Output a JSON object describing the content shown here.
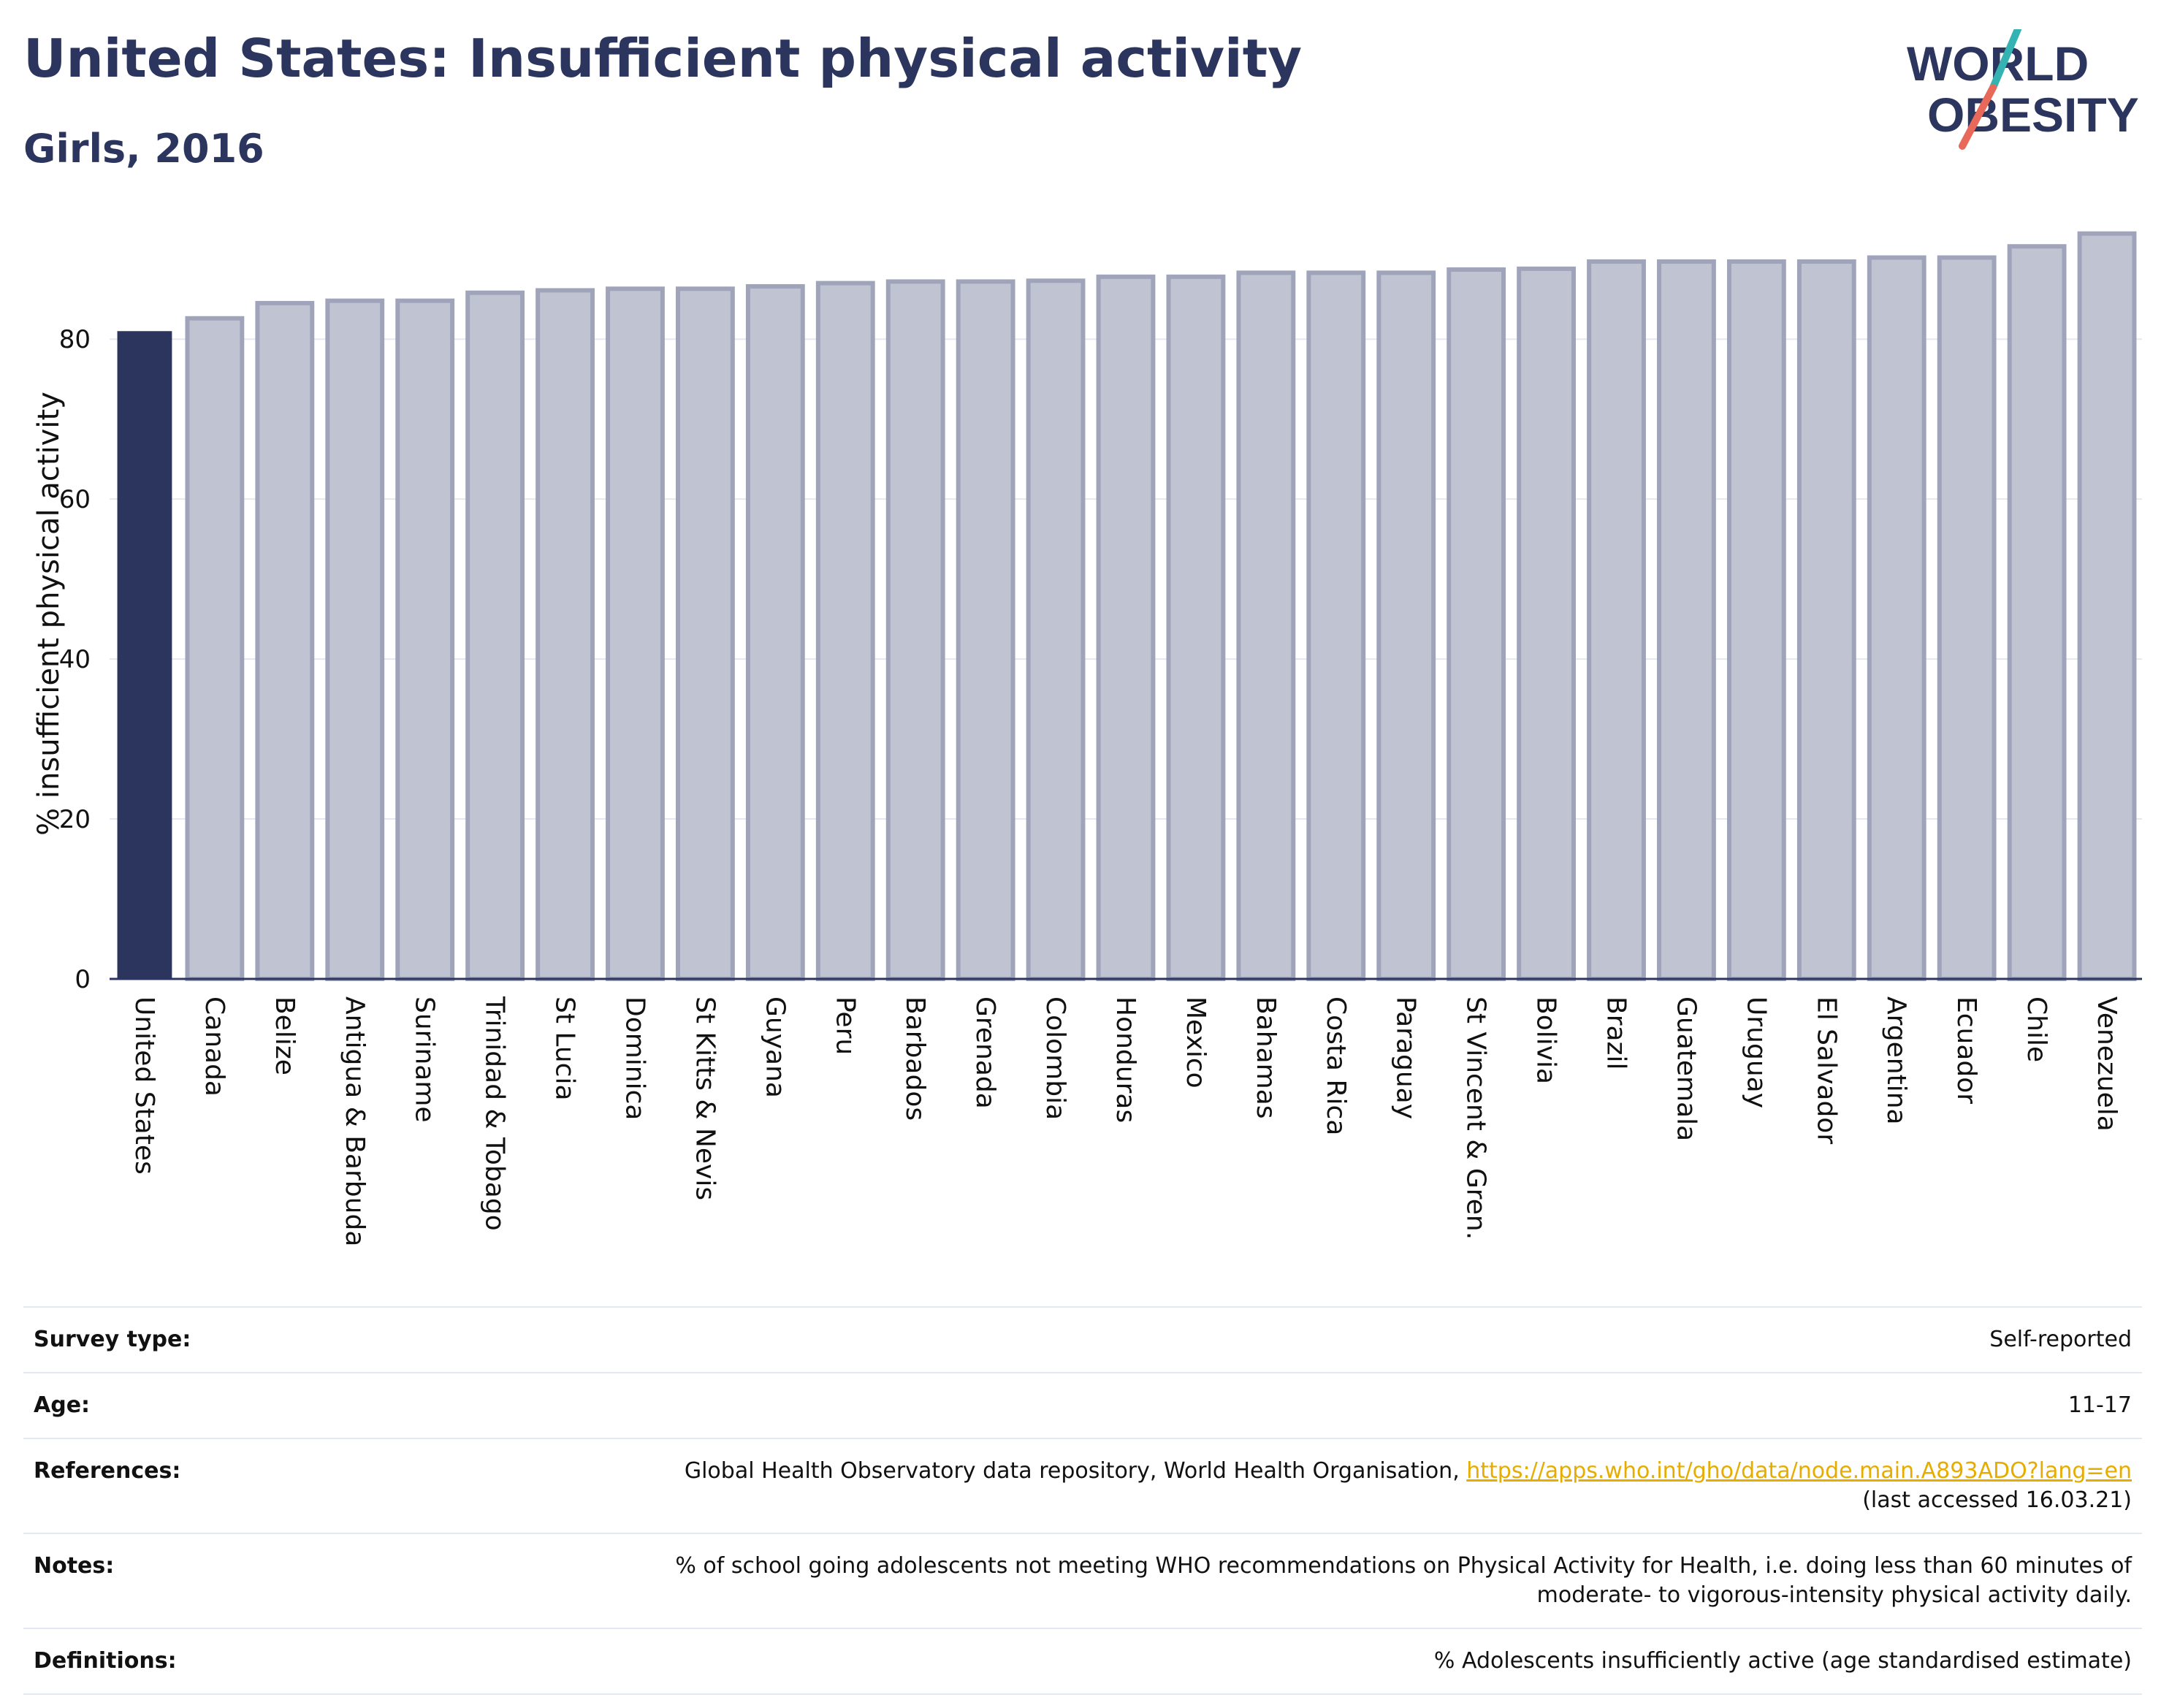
{
  "header": {
    "title": "United States: Insufficient physical activity",
    "subtitle": "Girls, 2016"
  },
  "logo": {
    "line1": "WORLD",
    "line2": "OBESITY",
    "colors": {
      "text": "#2b355e",
      "slash_top": "#35b3b3",
      "slash_bottom": "#e8685a"
    }
  },
  "chart_data": {
    "type": "bar",
    "ylabel": "% insufficient physical activity",
    "xlabel": "",
    "ylim": [
      0,
      95
    ],
    "yticks": [
      0,
      20,
      40,
      60,
      80
    ],
    "grid": true,
    "highlight": "United States",
    "colors": {
      "highlight": "#2b355e",
      "bar_fill": "#c0c3d1",
      "bar_stroke": "#9fa4ba",
      "grid": "#e6e8ef",
      "axis": "#2b355e"
    },
    "categories": [
      "United States",
      "Canada",
      "Belize",
      "Antigua & Barbuda",
      "Suriname",
      "Trinidad & Tobago",
      "St Lucia",
      "Dominica",
      "St Kitts & Nevis",
      "Guyana",
      "Peru",
      "Barbados",
      "Grenada",
      "Colombia",
      "Honduras",
      "Mexico",
      "Bahamas",
      "Costa Rica",
      "Paraguay",
      "St Vincent & Gren.",
      "Bolivia",
      "Brazil",
      "Guatemala",
      "Uruguay",
      "El Salvador",
      "Argentina",
      "Ecuador",
      "Chile",
      "Venezuela"
    ],
    "values": [
      81.0,
      82.6,
      84.5,
      84.8,
      84.8,
      85.8,
      86.1,
      86.3,
      86.3,
      86.6,
      87.0,
      87.2,
      87.2,
      87.3,
      87.8,
      87.8,
      88.3,
      88.3,
      88.3,
      88.7,
      88.8,
      89.7,
      89.7,
      89.7,
      89.7,
      90.2,
      90.2,
      91.6,
      93.2
    ]
  },
  "table": {
    "rows": [
      {
        "key": "Survey type:",
        "value": "Self-reported"
      },
      {
        "key": "Age:",
        "value": "11-17"
      },
      {
        "key": "References:",
        "value": "Global Health Observatory data repository, World Health Organisation, ",
        "link": "https://apps.who.int/gho/data/node.main.A893ADO?lang=en",
        "value2": "(last accessed 16.03.21)"
      },
      {
        "key": "Notes:",
        "value": "% of school going adolescents not meeting WHO recommendations on Physical Activity for Health, i.e. doing less than 60 minutes of",
        "value2": "moderate- to vigorous-intensity physical activity daily."
      },
      {
        "key": "Definitions:",
        "value": "% Adolescents insufficiently active (age standardised estimate)"
      }
    ]
  }
}
